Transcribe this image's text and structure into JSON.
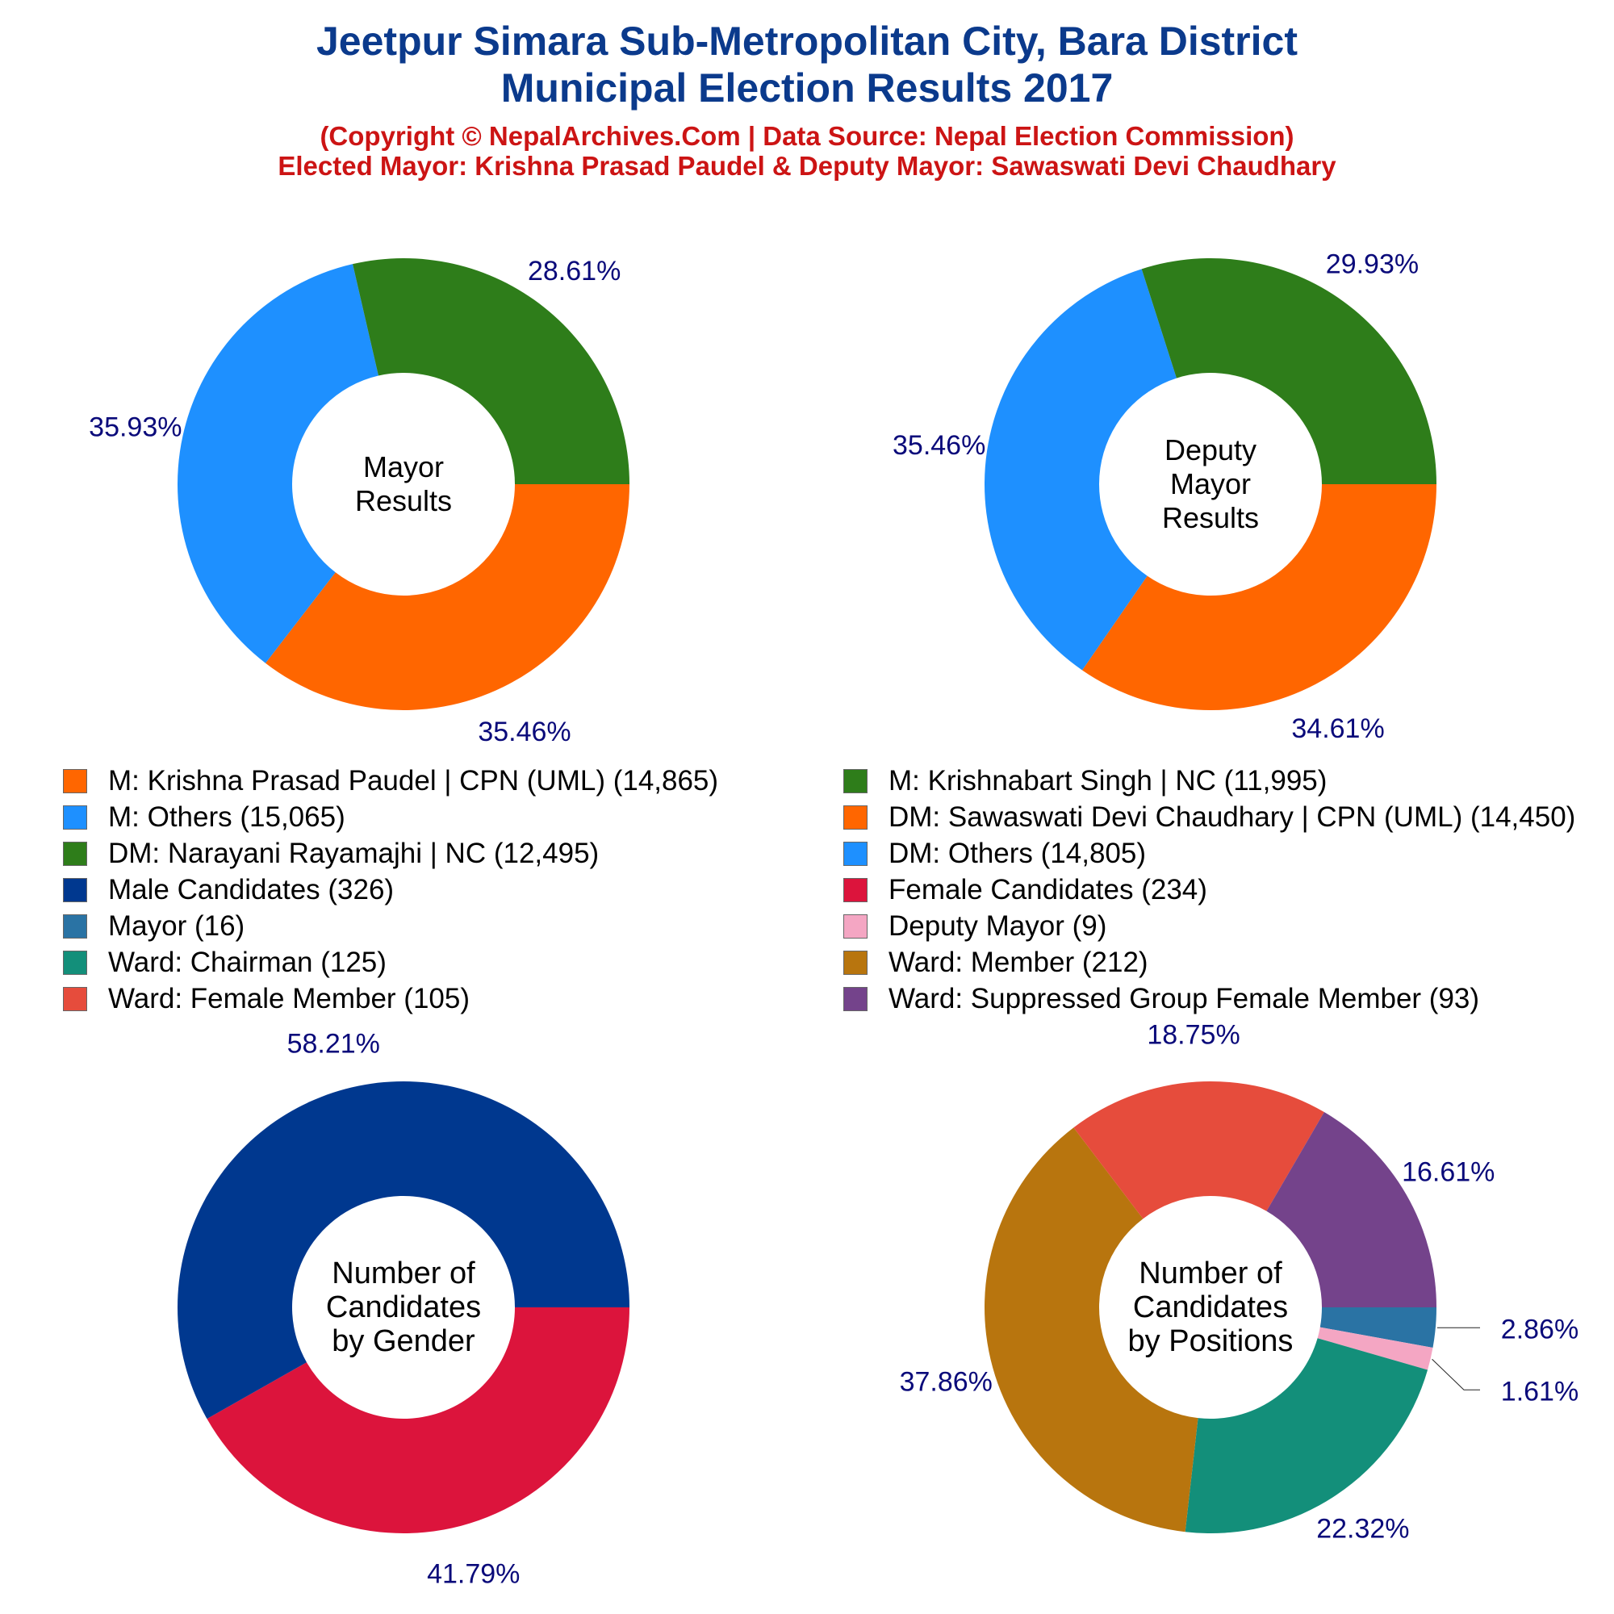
{
  "header": {
    "title_line1": "Jeetpur Simara Sub-Metropolitan City, Bara District",
    "title_line2": "Municipal Election Results 2017",
    "subtitle_line1": "(Copyright © NepalArchives.Com | Data Source: Nepal Election Commission)",
    "subtitle_line2": "Elected Mayor: Krishna Prasad Paudel & Deputy Mayor: Sawaswati Devi Chaudhary"
  },
  "colors": {
    "title": "#0b3a8c",
    "subtitle": "#cc1414",
    "percent_label": "#0a0a7a"
  },
  "chart_data": [
    {
      "type": "pie",
      "center_label": [
        "Mayor",
        "Results"
      ],
      "slices": [
        {
          "label": "M: Krishna Prasad Paudel | CPN (UML)",
          "value": 14865,
          "percent": "35.46%",
          "color": "#ff6600"
        },
        {
          "label": "M: Others",
          "value": 15065,
          "percent": "35.93%",
          "color": "#1e90ff"
        },
        {
          "label": "M: Krishnabart Singh | NC",
          "value": 11995,
          "percent": "28.61%",
          "color": "#2e7d1a"
        }
      ]
    },
    {
      "type": "pie",
      "center_label": [
        "Deputy",
        "Mayor",
        "Results"
      ],
      "slices": [
        {
          "label": "DM: Sawaswati Devi Chaudhary | CPN (UML)",
          "value": 14450,
          "percent": "34.61%",
          "color": "#ff6600"
        },
        {
          "label": "DM: Others",
          "value": 14805,
          "percent": "35.46%",
          "color": "#1e90ff"
        },
        {
          "label": "DM: Narayani Rayamajhi | NC",
          "value": 12495,
          "percent": "29.93%",
          "color": "#2e7d1a"
        }
      ]
    },
    {
      "type": "pie",
      "center_label": [
        "Number of",
        "Candidates",
        "by Gender"
      ],
      "slices": [
        {
          "label": "Female Candidates",
          "value": 234,
          "percent": "41.79%",
          "color": "#dc143c"
        },
        {
          "label": "Male Candidates",
          "value": 326,
          "percent": "58.21%",
          "color": "#00388f"
        }
      ]
    },
    {
      "type": "pie",
      "center_label": [
        "Number of",
        "Candidates",
        "by Positions"
      ],
      "slices": [
        {
          "label": "Mayor",
          "value": 16,
          "percent": "2.86%",
          "color": "#2a73a4"
        },
        {
          "label": "Deputy Mayor",
          "value": 9,
          "percent": "1.61%",
          "color": "#f4a6c3"
        },
        {
          "label": "Ward: Chairman",
          "value": 125,
          "percent": "22.32%",
          "color": "#138f7a"
        },
        {
          "label": "Ward: Member",
          "value": 212,
          "percent": "37.86%",
          "color": "#b8750e"
        },
        {
          "label": "Ward: Female Member",
          "value": 105,
          "percent": "18.75%",
          "color": "#e64c3c"
        },
        {
          "label": "Ward: Suppressed Group Female Member",
          "value": 93,
          "percent": "16.61%",
          "color": "#74438b"
        }
      ]
    }
  ],
  "legend": [
    {
      "label": "M: Krishna Prasad Paudel | CPN (UML) (14,865)",
      "color": "#ff6600"
    },
    {
      "label": "M: Krishnabart Singh | NC (11,995)",
      "color": "#2e7d1a"
    },
    {
      "label": "M: Others (15,065)",
      "color": "#1e90ff"
    },
    {
      "label": "DM: Sawaswati Devi Chaudhary | CPN (UML) (14,450)",
      "color": "#ff6600"
    },
    {
      "label": "DM: Narayani Rayamajhi | NC (12,495)",
      "color": "#2e7d1a"
    },
    {
      "label": "DM: Others (14,805)",
      "color": "#1e90ff"
    },
    {
      "label": "Male Candidates (326)",
      "color": "#00388f"
    },
    {
      "label": "Female Candidates (234)",
      "color": "#dc143c"
    },
    {
      "label": "Mayor (16)",
      "color": "#2a73a4"
    },
    {
      "label": "Deputy Mayor (9)",
      "color": "#f4a6c3"
    },
    {
      "label": "Ward: Chairman (125)",
      "color": "#138f7a"
    },
    {
      "label": "Ward: Member (212)",
      "color": "#b8750e"
    },
    {
      "label": "Ward: Female Member (105)",
      "color": "#e64c3c"
    },
    {
      "label": "Ward: Suppressed Group Female Member (93)",
      "color": "#74438b"
    }
  ]
}
